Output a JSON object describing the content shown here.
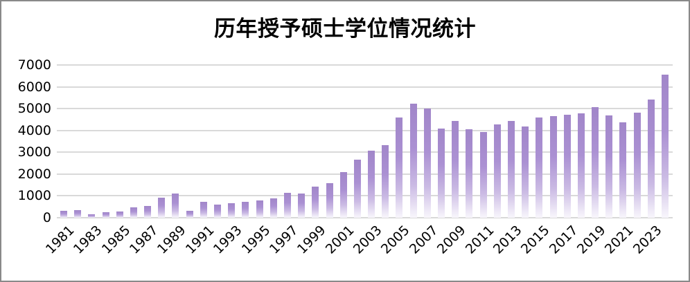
{
  "chart_data": {
    "type": "bar",
    "title": "历年授予硕士学位情况统计",
    "xlabel": "",
    "ylabel": "",
    "ylim": [
      0,
      7000
    ],
    "y_ticks": [
      0,
      1000,
      2000,
      3000,
      4000,
      5000,
      6000,
      7000
    ],
    "grid": true,
    "legend_position": "none",
    "x_tick_label_rotation_deg": -45,
    "x_tick_label_step": 2,
    "categories": [
      1981,
      1982,
      1983,
      1984,
      1985,
      1986,
      1987,
      1988,
      1989,
      1990,
      1991,
      1992,
      1993,
      1994,
      1995,
      1996,
      1997,
      1998,
      1999,
      2000,
      2001,
      2002,
      2003,
      2004,
      2005,
      2006,
      2007,
      2008,
      2009,
      2010,
      2011,
      2012,
      2013,
      2014,
      2015,
      2016,
      2017,
      2018,
      2019,
      2020,
      2021,
      2022,
      2023,
      2024
    ],
    "values": [
      330,
      345,
      160,
      265,
      295,
      475,
      525,
      925,
      1105,
      315,
      735,
      600,
      670,
      735,
      790,
      895,
      1125,
      1110,
      1410,
      1590,
      2075,
      2675,
      3075,
      3315,
      4590,
      5240,
      5010,
      4085,
      4420,
      4040,
      3935,
      4285,
      4440,
      4170,
      4600,
      4655,
      4735,
      4770,
      5075,
      4675,
      4380,
      4800,
      5420,
      6560
    ],
    "colors": {
      "bar_gradient_top": "#a186c9",
      "bar_gradient_bottom": "#f8f6fc",
      "gridline": "#d9d9d9",
      "axis_text": "#000000",
      "title_text": "#000000",
      "chart_border": "#898989",
      "background": "#ffffff"
    }
  }
}
